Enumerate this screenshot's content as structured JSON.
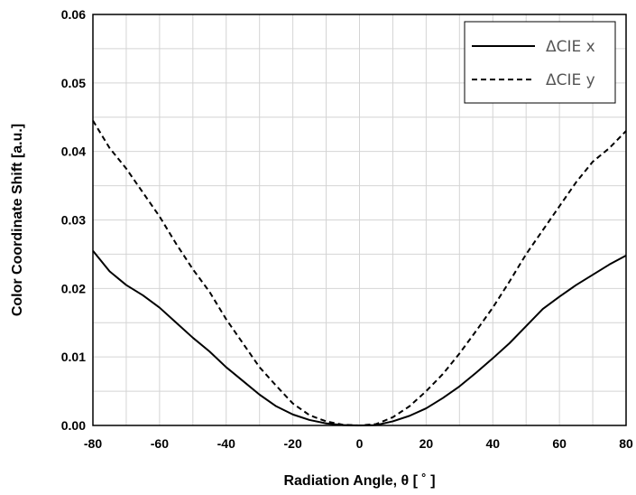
{
  "chart_data": {
    "type": "line",
    "xlabel": "Radiation Angle, θ [ ˚ ]",
    "ylabel": "Color Coordinate Shift [a.u.]",
    "xlim": [
      -80,
      80
    ],
    "ylim": [
      0,
      0.06
    ],
    "xticks": [
      -80,
      -60,
      -40,
      -20,
      0,
      20,
      40,
      60,
      80
    ],
    "xtick_labels": [
      "-80",
      "-60",
      "-40",
      "-20",
      "0",
      "20",
      "40",
      "60",
      "80"
    ],
    "yticks": [
      0,
      0.01,
      0.02,
      0.03,
      0.04,
      0.05,
      0.06
    ],
    "ytick_labels": [
      "0.00",
      "0.01",
      "0.02",
      "0.03",
      "0.04",
      "0.05",
      "0.06"
    ],
    "grid": true,
    "legend_position": "top-right",
    "series": [
      {
        "name": "ΔCIE x",
        "style": "solid",
        "color": "#000000",
        "x": [
          -80,
          -75,
          -70,
          -65,
          -60,
          -55,
          -50,
          -45,
          -40,
          -35,
          -30,
          -25,
          -20,
          -15,
          -10,
          -5,
          0,
          5,
          10,
          15,
          20,
          25,
          30,
          35,
          40,
          45,
          50,
          55,
          60,
          65,
          70,
          75,
          80
        ],
        "y": [
          0.0255,
          0.0225,
          0.0205,
          0.019,
          0.0172,
          0.015,
          0.0128,
          0.0108,
          0.0085,
          0.0065,
          0.0045,
          0.0028,
          0.0016,
          0.0008,
          0.0003,
          5e-05,
          0.0,
          5e-05,
          0.0006,
          0.0014,
          0.0025,
          0.004,
          0.0057,
          0.0077,
          0.0098,
          0.012,
          0.0145,
          0.017,
          0.0188,
          0.0205,
          0.022,
          0.0235,
          0.0248
        ]
      },
      {
        "name": "ΔCIE y",
        "style": "dashed",
        "color": "#000000",
        "x": [
          -80,
          -75,
          -70,
          -65,
          -60,
          -55,
          -50,
          -45,
          -40,
          -35,
          -30,
          -25,
          -20,
          -15,
          -10,
          -5,
          0,
          5,
          10,
          15,
          20,
          25,
          30,
          35,
          40,
          45,
          50,
          55,
          60,
          65,
          70,
          75,
          80
        ],
        "y": [
          0.0445,
          0.0405,
          0.0375,
          0.034,
          0.0305,
          0.0265,
          0.0228,
          0.0195,
          0.0155,
          0.012,
          0.0085,
          0.0058,
          0.0032,
          0.0015,
          0.0006,
          0.0001,
          0.0,
          0.0002,
          0.0012,
          0.0028,
          0.005,
          0.0075,
          0.0105,
          0.0138,
          0.0172,
          0.021,
          0.025,
          0.0285,
          0.032,
          0.0355,
          0.0385,
          0.0405,
          0.043
        ]
      }
    ]
  }
}
